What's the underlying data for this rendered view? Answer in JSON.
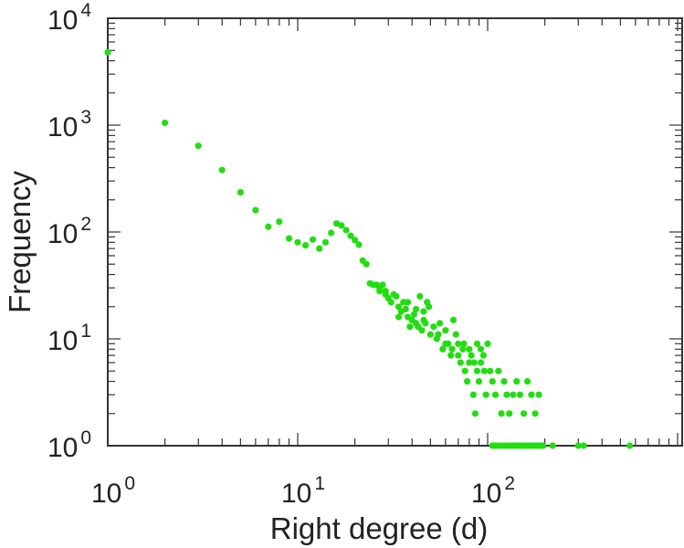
{
  "chart_data": {
    "type": "scatter",
    "xlabel": "Right degree (d)",
    "ylabel": "Frequency",
    "x_scale": "log",
    "y_scale": "log",
    "xlim": [
      1,
      1000
    ],
    "ylim": [
      1,
      10000
    ],
    "x_ticks": [
      {
        "base": "10",
        "exp": "0"
      },
      {
        "base": "10",
        "exp": "1"
      },
      {
        "base": "10",
        "exp": "2"
      }
    ],
    "y_ticks": [
      {
        "base": "10",
        "exp": "0"
      },
      {
        "base": "10",
        "exp": "1"
      },
      {
        "base": "10",
        "exp": "2"
      },
      {
        "base": "10",
        "exp": "3"
      },
      {
        "base": "10",
        "exp": "4"
      }
    ],
    "grid": false,
    "marker_color": "#22dd11",
    "series": [
      {
        "points": [
          [
            1,
            4800
          ],
          [
            2,
            1050
          ],
          [
            3,
            640
          ],
          [
            4,
            380
          ],
          [
            5,
            235
          ],
          [
            6,
            160
          ],
          [
            7,
            112
          ],
          [
            8,
            125
          ],
          [
            9,
            87
          ],
          [
            10,
            80
          ],
          [
            11,
            75
          ],
          [
            12,
            85
          ],
          [
            13,
            70
          ],
          [
            14,
            80
          ],
          [
            15,
            98
          ],
          [
            16,
            120
          ],
          [
            17,
            115
          ],
          [
            18,
            104
          ],
          [
            19,
            92
          ],
          [
            20,
            84
          ],
          [
            21,
            76
          ],
          [
            22,
            54
          ],
          [
            23,
            50
          ],
          [
            24,
            33
          ],
          [
            25,
            32
          ],
          [
            26,
            32
          ],
          [
            27,
            30
          ],
          [
            28,
            32
          ],
          [
            29,
            28
          ],
          [
            30,
            24
          ],
          [
            31,
            22
          ],
          [
            32,
            26
          ],
          [
            33,
            25
          ],
          [
            34,
            20
          ],
          [
            35,
            18
          ],
          [
            36,
            22
          ],
          [
            37,
            19
          ],
          [
            38,
            16
          ],
          [
            39,
            13
          ],
          [
            40,
            15
          ],
          [
            41,
            17
          ],
          [
            42,
            14
          ],
          [
            43,
            13
          ],
          [
            44,
            25
          ],
          [
            45,
            12
          ],
          [
            46,
            15
          ],
          [
            47,
            14
          ],
          [
            48,
            22
          ],
          [
            49,
            20
          ],
          [
            50,
            11
          ],
          [
            52,
            13
          ],
          [
            54,
            10
          ],
          [
            56,
            14
          ],
          [
            58,
            8
          ],
          [
            60,
            12
          ],
          [
            62,
            9
          ],
          [
            64,
            7
          ],
          [
            66,
            15
          ],
          [
            68,
            11
          ],
          [
            70,
            9
          ],
          [
            72,
            6
          ],
          [
            74,
            8
          ],
          [
            76,
            5
          ],
          [
            78,
            4
          ],
          [
            80,
            6
          ],
          [
            82,
            7
          ],
          [
            84,
            3
          ],
          [
            86,
            2
          ],
          [
            88,
            5
          ],
          [
            90,
            4
          ],
          [
            92,
            6
          ],
          [
            95,
            7
          ],
          [
            98,
            3
          ],
          [
            100,
            9
          ],
          [
            103,
            5
          ],
          [
            106,
            4
          ],
          [
            110,
            3
          ],
          [
            114,
            5
          ],
          [
            118,
            2
          ],
          [
            122,
            4
          ],
          [
            126,
            3
          ],
          [
            130,
            2
          ],
          [
            136,
            3
          ],
          [
            142,
            4
          ],
          [
            148,
            3
          ],
          [
            155,
            2
          ],
          [
            162,
            4
          ],
          [
            170,
            3
          ],
          [
            178,
            2
          ],
          [
            186,
            3
          ],
          [
            106,
            1
          ],
          [
            110,
            1
          ],
          [
            115,
            1
          ],
          [
            120,
            1
          ],
          [
            125,
            1
          ],
          [
            130,
            1
          ],
          [
            135,
            1
          ],
          [
            140,
            1
          ],
          [
            145,
            1
          ],
          [
            150,
            1
          ],
          [
            155,
            1
          ],
          [
            160,
            1
          ],
          [
            166,
            1
          ],
          [
            172,
            1
          ],
          [
            178,
            1
          ],
          [
            184,
            1
          ],
          [
            190,
            1
          ],
          [
            196,
            1
          ],
          [
            220,
            1
          ],
          [
            300,
            1
          ],
          [
            320,
            1
          ],
          [
            560,
            1
          ],
          [
            75,
            9
          ],
          [
            80,
            8
          ],
          [
            85,
            6
          ],
          [
            88,
            9
          ],
          [
            92,
            8
          ],
          [
            96,
            5
          ],
          [
            55,
            11
          ],
          [
            60,
            9
          ],
          [
            65,
            8
          ],
          [
            70,
            7
          ],
          [
            34,
            16
          ],
          [
            38,
            22
          ],
          [
            42,
            19
          ],
          [
            46,
            18
          ],
          [
            27,
            28
          ],
          [
            29,
            26
          ]
        ]
      }
    ]
  }
}
